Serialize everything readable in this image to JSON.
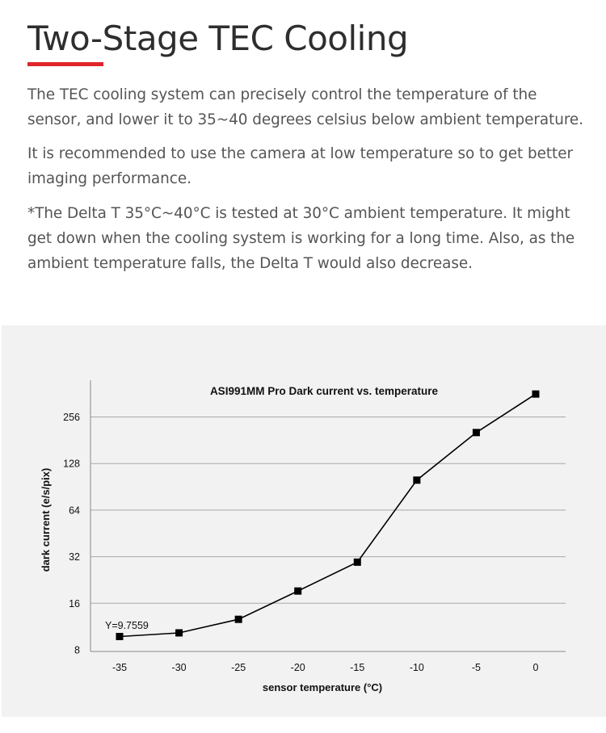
{
  "page": {
    "title": "Two-Stage TEC Cooling",
    "accent_color": "#e0242b",
    "paragraphs": [
      "The TEC cooling system can precisely control the temperature of the sensor, and lower it to 35~40 degrees celsius below ambient temperature.",
      "It is recommended to use the camera at low temperature so to get better imaging performance.",
      "*The Delta T 35°C~40°C is tested at 30°C ambient temperature. It might get down when the cooling system is working for a long time. Also, as the ambient temperature falls, the Delta T would also decrease."
    ]
  },
  "chart_data": {
    "type": "line",
    "title": "ASI991MM Pro Dark current vs. temperature",
    "xlabel": "sensor temperature (°C)",
    "ylabel": "dark current (e/s/pix)",
    "y_scale": "log2",
    "x": [
      -35,
      -30,
      -25,
      -20,
      -15,
      -10,
      -5,
      0
    ],
    "xlim": [
      -35,
      0
    ],
    "x_ticks": [
      -35,
      -30,
      -25,
      -20,
      -15,
      -10,
      -5,
      0
    ],
    "y_ticks": [
      8,
      16,
      32,
      64,
      128,
      256
    ],
    "ylim": [
      8,
      512
    ],
    "grid": true,
    "series": [
      {
        "name": "Dark current",
        "marker": "square",
        "values": [
          9.7559,
          10.3,
          12.6,
          19.2,
          29.5,
          100,
          203,
          360
        ]
      }
    ],
    "annotations": [
      {
        "text": "Y=9.7559",
        "x": -35,
        "y": 9.7559
      }
    ]
  }
}
